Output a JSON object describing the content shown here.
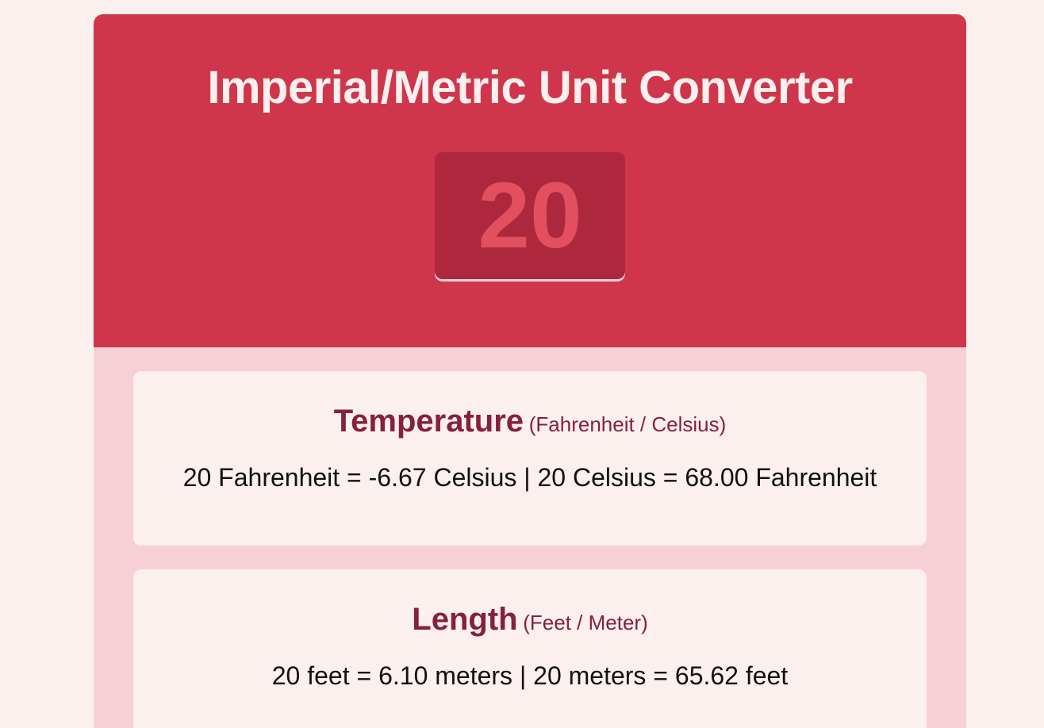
{
  "header": {
    "title": "Imperial/Metric Unit Converter",
    "input_value": "20"
  },
  "cards": {
    "temperature": {
      "title": "Temperature",
      "subtitle": "(Fahrenheit / Celsius)",
      "result": "20 Fahrenheit = -6.67 Celsius | 20 Celsius = 68.00 Fahrenheit"
    },
    "length": {
      "title": "Length",
      "subtitle": "(Feet / Meter)",
      "result": "20 feet = 6.10 meters | 20 meters = 65.62 feet"
    }
  },
  "colors": {
    "page_bg": "#fcf0ef",
    "header_bg": "#cf364b",
    "input_bg": "#ad283d",
    "input_text": "#e2505f",
    "body_bg": "#f6d0d4",
    "card_bg": "#fcf0ef",
    "card_heading": "#85203f"
  }
}
